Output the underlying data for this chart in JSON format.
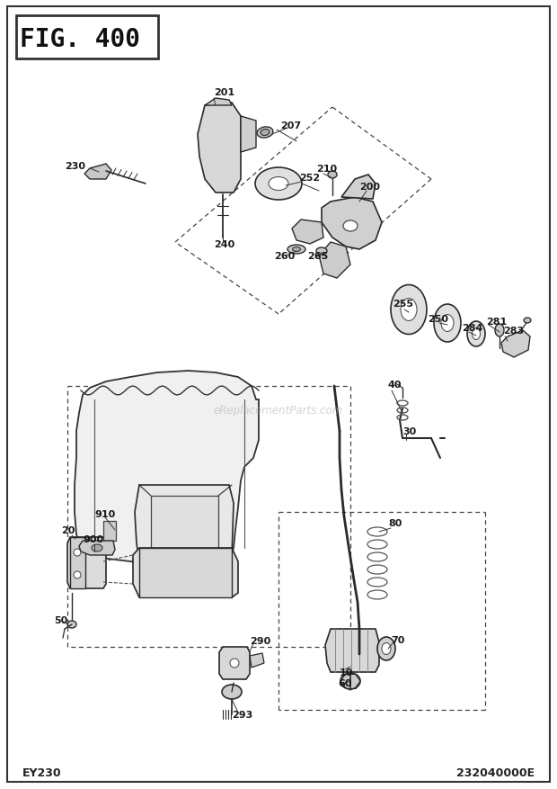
{
  "title": "FIG. 400",
  "bottom_left": "EY230",
  "bottom_right": "232040000E",
  "watermark": "eReplacementParts.com",
  "bg_color": "#ffffff",
  "line_color": "#2a2a2a",
  "label_color": "#1a1a1a",
  "part_fill": "#e0e0e0",
  "part_edge": "#2a2a2a"
}
